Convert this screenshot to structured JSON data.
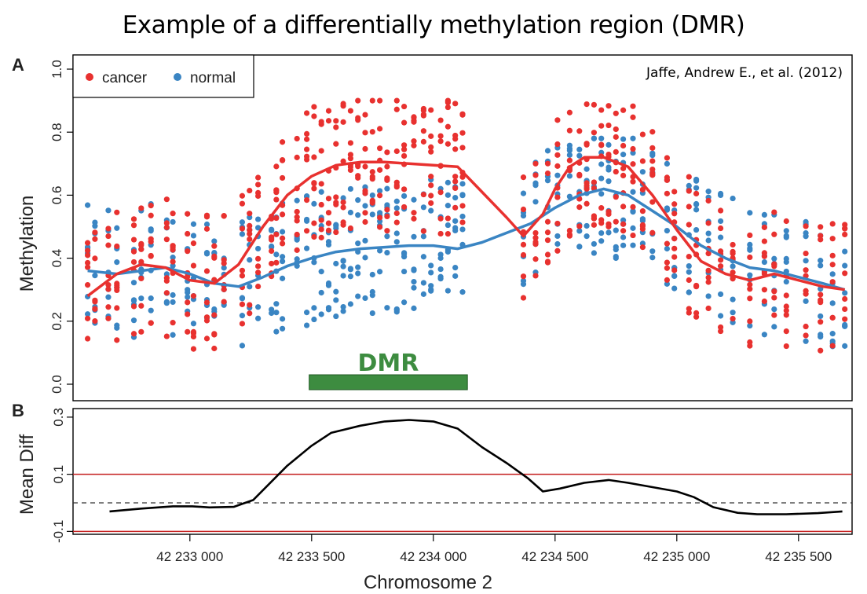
{
  "title": "Example of a differentially methylation region (DMR)",
  "colors": {
    "cancer": "#e8312f",
    "normal": "#3a85c3",
    "dmr": "#3d8c40",
    "threshold": "#c41e1e",
    "line": "#000000"
  },
  "chart_data": [
    {
      "panel_label": "A",
      "type": "scatter",
      "ylabel": "Methylation",
      "xlabel": "",
      "xlim": [
        42232520,
        42235720
      ],
      "ylim": [
        0,
        1
      ],
      "yticks": [
        "0.0",
        "0.2",
        "0.4",
        "0.6",
        "0.8",
        "1.0"
      ],
      "legend": {
        "placement": "top-left",
        "entries": [
          "cancer",
          "normal"
        ]
      },
      "annotation": "Jaffe, Andrew E., et al. (2012)",
      "dmr": {
        "label": "DMR",
        "start": 42233490,
        "end": 42234140
      },
      "cpg_positions": [
        42232580,
        42232610,
        42232665,
        42232700,
        42232770,
        42232800,
        42232840,
        42232905,
        42232930,
        42232990,
        42233015,
        42233070,
        42233100,
        42233140,
        42233215,
        42233245,
        42233280,
        42233335,
        42233355,
        42233380,
        42233440,
        42233480,
        42233510,
        42233540,
        42233570,
        42233600,
        42233630,
        42233660,
        42233690,
        42233720,
        42233750,
        42233780,
        42233810,
        42233850,
        42233880,
        42233920,
        42233960,
        42233990,
        42234030,
        42234060,
        42234090,
        42234120,
        42234370,
        42234420,
        42234470,
        42234510,
        42234560,
        42234600,
        42234630,
        42234660,
        42234690,
        42234720,
        42234750,
        42234780,
        42234820,
        42234860,
        42234900,
        42234960,
        42234990,
        42235050,
        42235080,
        42235130,
        42235180,
        42235230,
        42235300,
        42235360,
        42235400,
        42235450,
        42235530,
        42235590,
        42235640,
        42235690
      ],
      "series": [
        {
          "name": "cancer",
          "smooth": [
            [
              42232580,
              0.28
            ],
            [
              42232700,
              0.35
            ],
            [
              42232800,
              0.38
            ],
            [
              42232900,
              0.37
            ],
            [
              42233000,
              0.33
            ],
            [
              42233100,
              0.32
            ],
            [
              42233200,
              0.38
            ],
            [
              42233300,
              0.5
            ],
            [
              42233400,
              0.6
            ],
            [
              42233500,
              0.66
            ],
            [
              42233600,
              0.695
            ],
            [
              42233700,
              0.705
            ],
            [
              42233800,
              0.705
            ],
            [
              42233900,
              0.7
            ],
            [
              42234000,
              0.695
            ],
            [
              42234100,
              0.69
            ],
            [
              42234200,
              0.61
            ],
            [
              42234300,
              0.53
            ],
            [
              42234370,
              0.47
            ],
            [
              42234450,
              0.54
            ],
            [
              42234500,
              0.62
            ],
            [
              42234560,
              0.69
            ],
            [
              42234620,
              0.72
            ],
            [
              42234700,
              0.72
            ],
            [
              42234800,
              0.69
            ],
            [
              42234900,
              0.6
            ],
            [
              42235000,
              0.49
            ],
            [
              42235100,
              0.39
            ],
            [
              42235200,
              0.35
            ],
            [
              42235300,
              0.33
            ],
            [
              42235400,
              0.35
            ],
            [
              42235500,
              0.33
            ],
            [
              42235600,
              0.31
            ],
            [
              42235690,
              0.3
            ]
          ]
        },
        {
          "name": "normal",
          "smooth": [
            [
              42232580,
              0.36
            ],
            [
              42232700,
              0.35
            ],
            [
              42232800,
              0.36
            ],
            [
              42232900,
              0.37
            ],
            [
              42233000,
              0.35
            ],
            [
              42233100,
              0.32
            ],
            [
              42233200,
              0.31
            ],
            [
              42233300,
              0.34
            ],
            [
              42233400,
              0.375
            ],
            [
              42233500,
              0.4
            ],
            [
              42233600,
              0.42
            ],
            [
              42233700,
              0.43
            ],
            [
              42233800,
              0.435
            ],
            [
              42233900,
              0.44
            ],
            [
              42234000,
              0.44
            ],
            [
              42234100,
              0.43
            ],
            [
              42234200,
              0.45
            ],
            [
              42234300,
              0.48
            ],
            [
              42234400,
              0.51
            ],
            [
              42234500,
              0.56
            ],
            [
              42234600,
              0.6
            ],
            [
              42234700,
              0.62
            ],
            [
              42234800,
              0.6
            ],
            [
              42234900,
              0.55
            ],
            [
              42235000,
              0.5
            ],
            [
              42235100,
              0.44
            ],
            [
              42235200,
              0.4
            ],
            [
              42235300,
              0.37
            ],
            [
              42235400,
              0.36
            ],
            [
              42235500,
              0.34
            ],
            [
              42235600,
              0.32
            ],
            [
              42235690,
              0.3
            ]
          ]
        }
      ]
    },
    {
      "panel_label": "B",
      "type": "line",
      "ylabel": "Mean Diff",
      "xlabel": "Chromosome 2",
      "xlim": [
        42232520,
        42235720
      ],
      "ylim": [
        -0.11,
        0.33
      ],
      "yticks": [
        "-0.1",
        "0.1",
        "0.3"
      ],
      "ytick_values": [
        -0.1,
        0.1,
        0.3
      ],
      "xticks": [
        "42 233 000",
        "42 233 500",
        "42 234 000",
        "42 234 500",
        "42 235 000",
        "42 235 500"
      ],
      "xtick_values": [
        42233000,
        42233500,
        42234000,
        42234500,
        42235000,
        42235500
      ],
      "reference_lines": {
        "zero": 0,
        "thresholds": [
          0.1,
          -0.1
        ]
      },
      "x": [
        42232670,
        42232800,
        42232930,
        42233010,
        42233080,
        42233180,
        42233260,
        42233400,
        42233500,
        42233580,
        42233700,
        42233800,
        42233900,
        42234000,
        42234100,
        42234200,
        42234300,
        42234390,
        42234450,
        42234520,
        42234620,
        42234720,
        42234800,
        42234900,
        42235000,
        42235070,
        42235150,
        42235250,
        42235330,
        42235450,
        42235580,
        42235680
      ],
      "values": [
        -0.03,
        -0.02,
        -0.012,
        -0.012,
        -0.016,
        -0.014,
        0.01,
        0.13,
        0.2,
        0.245,
        0.27,
        0.285,
        0.29,
        0.285,
        0.26,
        0.195,
        0.14,
        0.085,
        0.04,
        0.05,
        0.07,
        0.08,
        0.07,
        0.055,
        0.04,
        0.02,
        -0.015,
        -0.035,
        -0.04,
        -0.04,
        -0.036,
        -0.03
      ]
    }
  ]
}
